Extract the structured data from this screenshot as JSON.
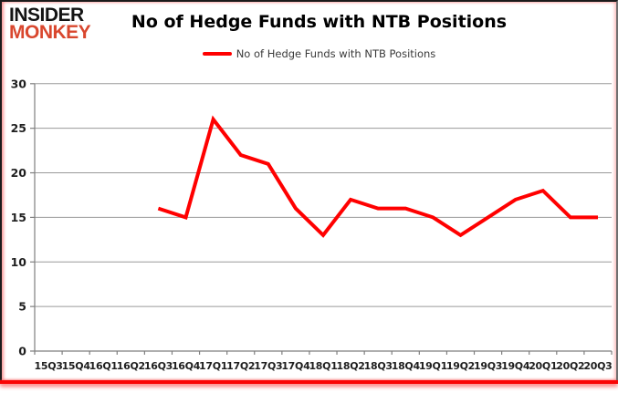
{
  "logo": {
    "top": "INSIDER",
    "bottom": "MONKEY",
    "top_color": "#141414",
    "bottom_color": "#d9472e"
  },
  "title": "No of Hedge Funds with NTB Positions",
  "legend": {
    "label": "No of Hedge Funds with NTB Positions",
    "swatch_color": "#ff0000"
  },
  "chart_data": {
    "type": "line",
    "title": "No of Hedge Funds with NTB Positions",
    "categories": [
      "15Q3",
      "15Q4",
      "16Q1",
      "16Q2",
      "16Q3",
      "16Q4",
      "17Q1",
      "17Q2",
      "17Q3",
      "17Q4",
      "18Q1",
      "18Q2",
      "18Q3",
      "18Q4",
      "19Q1",
      "19Q2",
      "19Q3",
      "19Q4",
      "20Q1",
      "20Q2",
      "20Q3"
    ],
    "series": [
      {
        "name": "No of Hedge Funds with NTB Positions",
        "color": "#ff0000",
        "values": [
          null,
          null,
          null,
          null,
          16,
          15,
          26,
          22,
          21,
          16,
          13,
          17,
          16,
          16,
          15,
          13,
          15,
          17,
          18,
          15,
          15
        ]
      }
    ],
    "xlabel": "",
    "ylabel": "",
    "ylim": [
      0,
      30
    ],
    "ytick_interval": 5,
    "grid": "horizontal",
    "legend_position": "top",
    "grid_color": "#9a9a9a",
    "axis_color": "#7f7f7f",
    "tick_label_color": "#1f1f1f"
  }
}
